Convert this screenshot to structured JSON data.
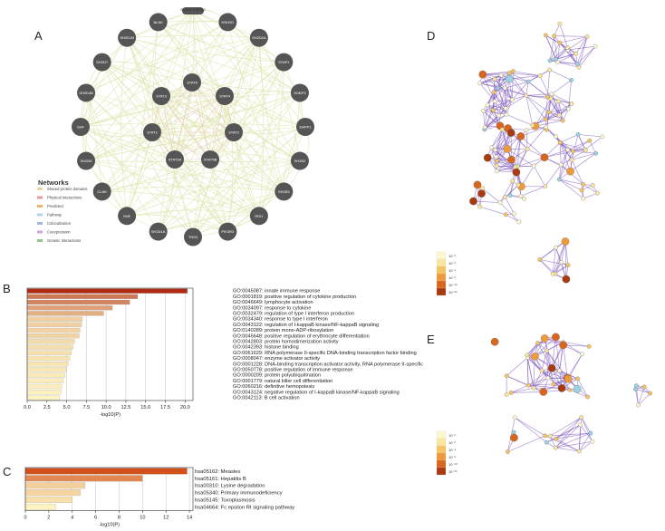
{
  "panels": {
    "A": "A",
    "B": "B",
    "C": "C",
    "D": "D",
    "E": "E"
  },
  "network_A": {
    "legend_title": "Networks",
    "legend": [
      {
        "label": "Shared protein domains",
        "color": "#e8d5a0"
      },
      {
        "label": "Physical Interactions",
        "color": "#e89a9a"
      },
      {
        "label": "Predicted",
        "color": "#f0b070"
      },
      {
        "label": "Pathway",
        "color": "#a8d8e8"
      },
      {
        "label": "Colocalization",
        "color": "#a0b8e0"
      },
      {
        "label": "Coexpression",
        "color": "#c8a8d8"
      },
      {
        "label": "Genetic Interactions",
        "color": "#90c890"
      }
    ],
    "nodes_outer": [
      "HSH2D",
      "SH2D2A",
      "STAP1",
      "SOBP3",
      "DAPP1",
      "SH2B2",
      "SH2B3",
      "IRS1",
      "PIK3R3",
      "TNS4",
      "SH2D1A",
      "SHE",
      "CLNK",
      "SH2D6",
      "SHF",
      "SH2D4B",
      "SH2D7",
      "SH2D1B",
      "BLNK"
    ],
    "nodes_inner": [
      "STAT6",
      "STAT3",
      "STAT4",
      "STAT1",
      "STAT2",
      "STAT5A",
      "STAT5B"
    ],
    "top_label": "SH2B1 PIK3R2",
    "node_color": "#555555",
    "edge_color": "#dfe6b0"
  },
  "chart_data": [
    {
      "type": "bar",
      "orientation": "horizontal",
      "categories": [
        "GO:0045087: innate immune response",
        "GO:0001819: positive regulation of cytokine production",
        "GO:0046649: lymphocyte activation",
        "GO:0034097: response to cytokine",
        "GO:0032479: regulation of type I interferon production",
        "GO:0034340: response to type I interferon",
        "GO:0043122: regulation of I-kappaB kinase/NF-kappaB signaling",
        "GO:0140289: protein mono-ADP-ribosylation",
        "GO:0045648: positive regulation of erythrocyte differentiation",
        "GO:0042803: protein homodimerization activity",
        "GO:0042393: histone binding",
        "GO:0061629: RNA polymerase II-specific DNA-binding transcription factor binding",
        "GO:0008047: enzyme activator activity",
        "GO:0001228: DNA-binding transcription activator activity, RNA polymerase II-specific",
        "GO:0050778: positive regulation of immune response",
        "GO:0000209: protein polyubiquitination",
        "GO:0001779: natural killer cell differentiation",
        "GO:0060216: definitive hemopoiesis",
        "GO:0043124: negative regulation of I-kappaB kinase/NF-kappaB signaling",
        "GO:0042113: B cell activation"
      ],
      "values": [
        20.3,
        14.0,
        13.0,
        10.8,
        9.7,
        7.0,
        6.9,
        6.7,
        6.6,
        6.0,
        5.8,
        5.6,
        5.4,
        5.2,
        5.0,
        4.8,
        4.6,
        4.4,
        4.3,
        4.1
      ],
      "xlabel": "-log10(P)",
      "xlim": [
        0,
        21
      ],
      "xticks": [
        "0.0",
        "2.5",
        "5.0",
        "7.5",
        "10.0",
        "12.5",
        "15.0",
        "17.5",
        "20.0"
      ],
      "xtick_values": [
        0,
        2.5,
        5,
        7.5,
        10,
        12.5,
        15,
        17.5,
        20
      ],
      "color_low": "#fdf3c0",
      "color_high": "#b02a12"
    },
    {
      "type": "bar",
      "orientation": "horizontal",
      "categories": [
        "hsa05162: Measles",
        "hsa05161: Hepatitis B",
        "hsa00310: Lysine degradation",
        "hsa05340: Primary immunodeficiency",
        "hsa05145: Toxoplasmosis",
        "hsa04664: Fc epsilon RI signaling pathway"
      ],
      "values": [
        13.8,
        10.0,
        5.1,
        4.7,
        4.0,
        2.6
      ],
      "xlabel": "-log10(P)",
      "xlim": [
        0,
        14.3
      ],
      "xticks": [
        "0",
        "2",
        "4",
        "6",
        "8",
        "10",
        "12",
        "14"
      ],
      "xtick_values": [
        0,
        2,
        4,
        6,
        8,
        10,
        12,
        14
      ],
      "color_low": "#fdf3c0",
      "color_high": "#d2501a"
    }
  ],
  "network_D": {
    "legend": [
      "10⁻²",
      "10⁻³",
      "10⁻⁴",
      "10⁻⁶",
      "10⁻¹⁰",
      "10⁻²⁰"
    ],
    "legend_colors": [
      "#fdf7d0",
      "#fbe6a0",
      "#f5c463",
      "#ee9a3c",
      "#d8661f",
      "#a83a12"
    ],
    "edge_color": "#6a3fb8"
  },
  "network_E": {
    "legend": [
      "10⁻²",
      "10⁻³",
      "10⁻⁴",
      "10⁻⁶",
      "10⁻¹⁰",
      "10⁻²⁰"
    ],
    "legend_colors": [
      "#fdf7d0",
      "#fbe6a0",
      "#f5c463",
      "#ee9a3c",
      "#d8661f",
      "#a83a12"
    ],
    "edge_color": "#6a3fb8"
  }
}
